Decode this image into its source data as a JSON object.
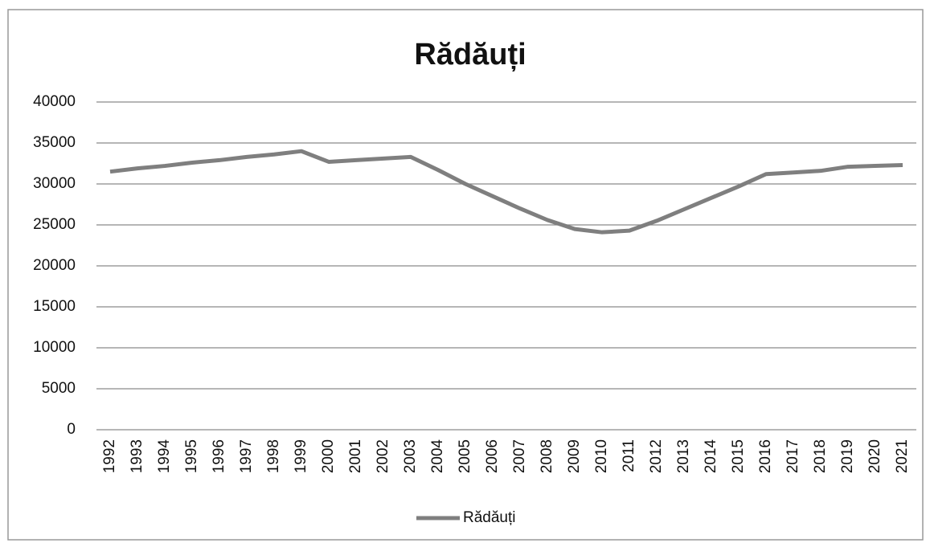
{
  "chart_data": {
    "type": "line",
    "title": "Rădăuți",
    "categories": [
      "1992",
      "1993",
      "1994",
      "1995",
      "1996",
      "1997",
      "1998",
      "1999",
      "2000",
      "2001",
      "2002",
      "2003",
      "2004",
      "2005",
      "2006",
      "2007",
      "2008",
      "2009",
      "2010",
      "2011",
      "2012",
      "2013",
      "2014",
      "2015",
      "2016",
      "2017",
      "2018",
      "2019",
      "2020",
      "2021"
    ],
    "series": [
      {
        "name": "Rădăuți",
        "color": "#7f7f7f",
        "values": [
          31500,
          31900,
          32200,
          32600,
          32900,
          33300,
          33600,
          34000,
          32700,
          32900,
          33100,
          33300,
          31700,
          30000,
          28500,
          27000,
          25600,
          24500,
          24100,
          24300,
          25500,
          26900,
          28300,
          29700,
          31200,
          31400,
          31600,
          32100,
          32200,
          32300
        ]
      }
    ],
    "ylim": [
      0,
      40000
    ],
    "yticks": [
      0,
      5000,
      10000,
      15000,
      20000,
      25000,
      30000,
      35000,
      40000
    ],
    "grid": true,
    "legend": "bottom"
  }
}
